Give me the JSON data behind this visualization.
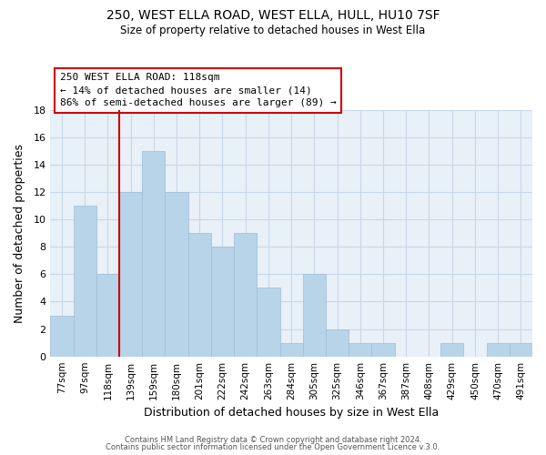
{
  "title": "250, WEST ELLA ROAD, WEST ELLA, HULL, HU10 7SF",
  "subtitle": "Size of property relative to detached houses in West Ella",
  "xlabel": "Distribution of detached houses by size in West Ella",
  "ylabel": "Number of detached properties",
  "bin_labels": [
    "77sqm",
    "97sqm",
    "118sqm",
    "139sqm",
    "159sqm",
    "180sqm",
    "201sqm",
    "222sqm",
    "242sqm",
    "263sqm",
    "284sqm",
    "305sqm",
    "325sqm",
    "346sqm",
    "367sqm",
    "387sqm",
    "408sqm",
    "429sqm",
    "450sqm",
    "470sqm",
    "491sqm"
  ],
  "bar_values": [
    3,
    11,
    6,
    12,
    15,
    12,
    9,
    8,
    9,
    5,
    1,
    6,
    2,
    1,
    1,
    0,
    0,
    1,
    0,
    1,
    1
  ],
  "highlight_index": 2,
  "highlight_color": "#cc0000",
  "bar_color": "#b8d4e8",
  "bar_edge_color": "#a0bcd8",
  "bg_color": "#e8f0f8",
  "grid_color": "#c8d8e8",
  "ylim": [
    0,
    18
  ],
  "yticks": [
    0,
    2,
    4,
    6,
    8,
    10,
    12,
    14,
    16,
    18
  ],
  "annotation_title": "250 WEST ELLA ROAD: 118sqm",
  "annotation_line1": "← 14% of detached houses are smaller (14)",
  "annotation_line2": "86% of semi-detached houses are larger (89) →",
  "footer1": "Contains HM Land Registry data © Crown copyright and database right 2024.",
  "footer2": "Contains public sector information licensed under the Open Government Licence v.3.0."
}
